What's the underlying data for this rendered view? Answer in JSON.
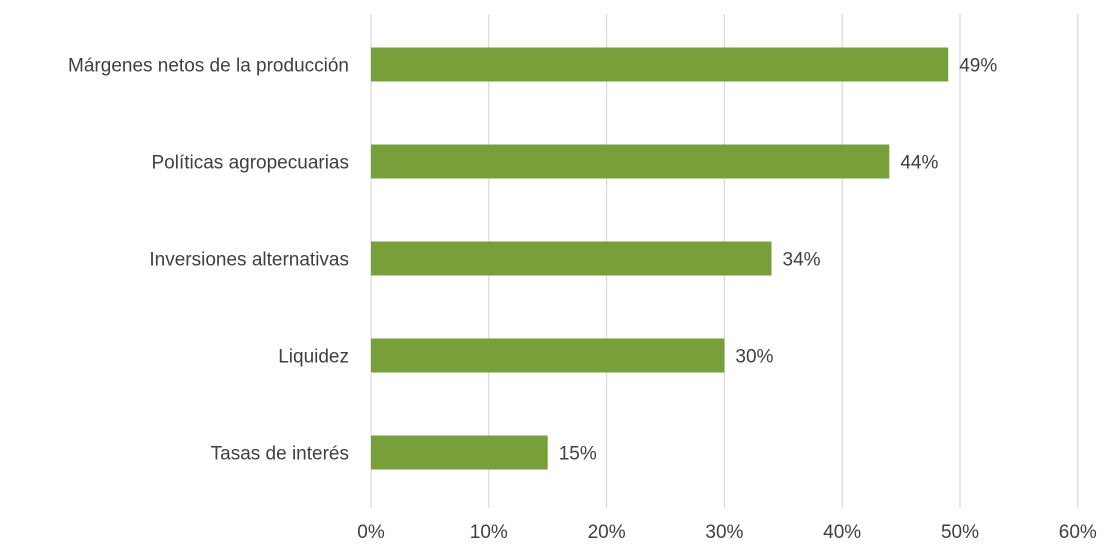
{
  "chart_data": {
    "type": "bar",
    "orientation": "horizontal",
    "categories": [
      "Márgenes netos de la producción",
      "Políticas agropecuarias",
      "Inversiones alternativas",
      "Liquidez",
      "Tasas de interés"
    ],
    "values": [
      49,
      44,
      34,
      30,
      15
    ],
    "data_labels": [
      "49%",
      "44%",
      "34%",
      "30%",
      "15%"
    ],
    "x_ticks": [
      "0%",
      "10%",
      "20%",
      "30%",
      "40%",
      "50%",
      "60%"
    ],
    "xlim": [
      0,
      60
    ],
    "title": "",
    "xlabel": "",
    "ylabel": "",
    "grid": "vertical",
    "legend": "none",
    "bar_color": "#77a03a"
  }
}
